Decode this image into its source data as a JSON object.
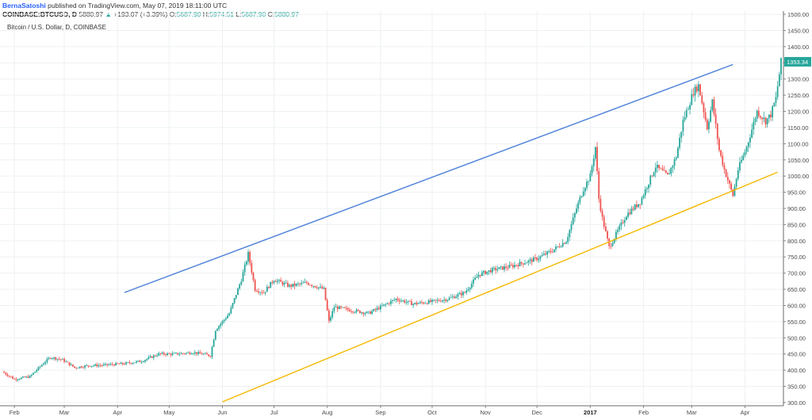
{
  "header": {
    "author": "BernaSatoshi",
    "published": "published on TradingView.com, May 07, 2019 18:11:00 UTC",
    "symbol": "COINBASE:BTCUSD, D",
    "last": "5880.97",
    "change_arrow": "▲",
    "change": "+193.07 (+3.39%)",
    "o_label": "O:",
    "o_value": "5687.90",
    "h_label": "H:",
    "h_value": "5974.51",
    "l_label": "L:",
    "l_value": "5687.90",
    "c_label": "C:",
    "c_value": "5880.97"
  },
  "subtitle": "Bitcoin / U.S. Dollar, D, COINBASE",
  "colors": {
    "up": "#26a69a",
    "down": "#ef5350",
    "upper_line": "#4a7fd8",
    "lower_line": "#f5b800",
    "price_tag": "#26a69a",
    "grid": "#eef0f3"
  },
  "chart_data": {
    "type": "candlestick",
    "y_axis": {
      "min": 290,
      "max": 1510,
      "ticks": [
        300,
        350,
        400,
        450,
        500,
        550,
        600,
        650,
        700,
        750,
        800,
        850,
        900,
        950,
        1000,
        1050,
        1100,
        1150,
        1200,
        1250,
        1300,
        1350,
        1400,
        1450,
        1500
      ],
      "tick_labels": [
        "300.00",
        "350.00",
        "400.00",
        "450.00",
        "500.00",
        "550.00",
        "600.00",
        "650.00",
        "700.00",
        "750.00",
        "800.00",
        "850.00",
        "900.00",
        "950.00",
        "1000.00",
        "1050.00",
        "1100.00",
        "1150.00",
        "1200.00",
        "1250.00",
        "1300.00",
        "1350.00",
        "1400.00",
        "1450.00",
        "1500.00"
      ],
      "position": "right"
    },
    "x_axis": {
      "start": "2016-01-25",
      "end": "2017-04-22",
      "ticks": [
        {
          "date": "2016-02-01",
          "label": "Feb",
          "bold": false
        },
        {
          "date": "2016-03-01",
          "label": "Mar",
          "bold": false
        },
        {
          "date": "2016-04-01",
          "label": "Apr",
          "bold": false
        },
        {
          "date": "2016-05-01",
          "label": "May",
          "bold": false
        },
        {
          "date": "2016-06-01",
          "label": "Jun",
          "bold": false
        },
        {
          "date": "2016-07-01",
          "label": "Jul",
          "bold": false
        },
        {
          "date": "2016-08-01",
          "label": "Aug",
          "bold": false
        },
        {
          "date": "2016-09-01",
          "label": "Sep",
          "bold": false
        },
        {
          "date": "2016-10-01",
          "label": "Oct",
          "bold": false
        },
        {
          "date": "2016-11-01",
          "label": "Nov",
          "bold": false
        },
        {
          "date": "2016-12-01",
          "label": "Dec",
          "bold": false
        },
        {
          "date": "2017-01-01",
          "label": "2017",
          "bold": true
        },
        {
          "date": "2017-02-01",
          "label": "Feb",
          "bold": false
        },
        {
          "date": "2017-03-01",
          "label": "Mar",
          "bold": false
        },
        {
          "date": "2017-04-01",
          "label": "Apr",
          "bold": false
        }
      ]
    },
    "grid": true,
    "last_price": {
      "value": 1353.34,
      "label": "1353.34"
    },
    "price_path": [
      [
        "2016-01-25",
        395
      ],
      [
        "2016-02-01",
        372
      ],
      [
        "2016-02-10",
        380
      ],
      [
        "2016-02-18",
        422
      ],
      [
        "2016-02-22",
        440
      ],
      [
        "2016-02-29",
        432
      ],
      [
        "2016-03-07",
        408
      ],
      [
        "2016-03-15",
        414
      ],
      [
        "2016-03-25",
        416
      ],
      [
        "2016-04-05",
        420
      ],
      [
        "2016-04-15",
        428
      ],
      [
        "2016-04-25",
        450
      ],
      [
        "2016-05-05",
        450
      ],
      [
        "2016-05-15",
        455
      ],
      [
        "2016-05-25",
        445
      ],
      [
        "2016-05-28",
        525
      ],
      [
        "2016-06-05",
        575
      ],
      [
        "2016-06-12",
        680
      ],
      [
        "2016-06-16",
        760
      ],
      [
        "2016-06-20",
        650
      ],
      [
        "2016-06-25",
        640
      ],
      [
        "2016-07-01",
        680
      ],
      [
        "2016-07-10",
        660
      ],
      [
        "2016-07-20",
        670
      ],
      [
        "2016-07-30",
        650
      ],
      [
        "2016-08-02",
        550
      ],
      [
        "2016-08-05",
        595
      ],
      [
        "2016-08-15",
        585
      ],
      [
        "2016-08-25",
        576
      ],
      [
        "2016-09-01",
        595
      ],
      [
        "2016-09-10",
        620
      ],
      [
        "2016-09-20",
        605
      ],
      [
        "2016-10-01",
        612
      ],
      [
        "2016-10-10",
        620
      ],
      [
        "2016-10-20",
        640
      ],
      [
        "2016-10-28",
        695
      ],
      [
        "2016-11-05",
        710
      ],
      [
        "2016-11-15",
        720
      ],
      [
        "2016-11-25",
        735
      ],
      [
        "2016-12-01",
        745
      ],
      [
        "2016-12-10",
        770
      ],
      [
        "2016-12-18",
        800
      ],
      [
        "2016-12-24",
        900
      ],
      [
        "2016-12-28",
        960
      ],
      [
        "2017-01-01",
        1000
      ],
      [
        "2017-01-04",
        1090
      ],
      [
        "2017-01-06",
        930
      ],
      [
        "2017-01-08",
        870
      ],
      [
        "2017-01-12",
        780
      ],
      [
        "2017-01-16",
        820
      ],
      [
        "2017-01-22",
        880
      ],
      [
        "2017-01-30",
        920
      ],
      [
        "2017-02-08",
        1030
      ],
      [
        "2017-02-15",
        1000
      ],
      [
        "2017-02-20",
        1060
      ],
      [
        "2017-02-24",
        1170
      ],
      [
        "2017-03-02",
        1260
      ],
      [
        "2017-03-05",
        1280
      ],
      [
        "2017-03-10",
        1150
      ],
      [
        "2017-03-13",
        1230
      ],
      [
        "2017-03-17",
        1080
      ],
      [
        "2017-03-20",
        1020
      ],
      [
        "2017-03-25",
        940
      ],
      [
        "2017-03-28",
        1020
      ],
      [
        "2017-04-02",
        1090
      ],
      [
        "2017-04-08",
        1200
      ],
      [
        "2017-04-13",
        1170
      ],
      [
        "2017-04-16",
        1190
      ],
      [
        "2017-04-19",
        1240
      ],
      [
        "2017-04-22",
        1353.34
      ]
    ],
    "trendlines": [
      {
        "from": [
          "2016-04-05",
          640
        ],
        "to": [
          "2017-03-25",
          1345
        ],
        "color": "#4a7fd8"
      },
      {
        "from": [
          "2016-06-01",
          302
        ],
        "to": [
          "2017-04-20",
          1012
        ],
        "color": "#f5b800"
      }
    ]
  }
}
